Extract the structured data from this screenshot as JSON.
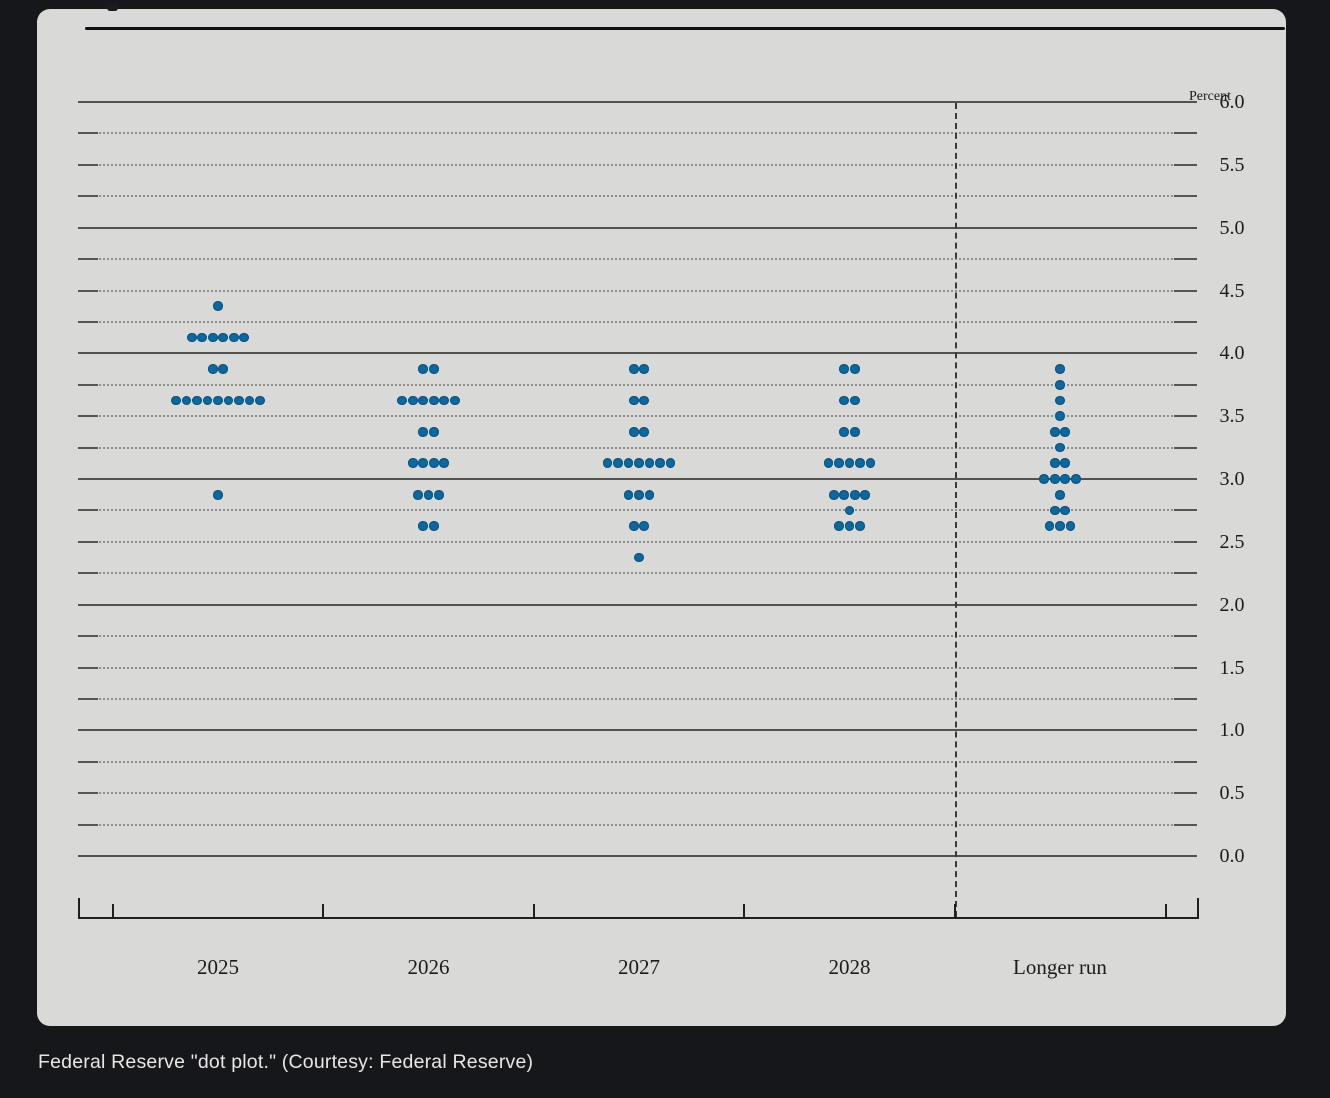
{
  "page": {
    "caption": "Federal Reserve \"dot plot.\" (Courtesy: Federal Reserve)"
  },
  "colors": {
    "page_background": "#15171b",
    "card_background": "#d9d9d8",
    "dot_blue": "#0e689d",
    "solid_gridline": "#3f3f3f",
    "dotted_gridline": "#8d8d8d",
    "axis": "#1f1f1f",
    "caption_text": "#e9e7e4"
  },
  "chart_data": {
    "type": "scatter",
    "subtype": "fomc-dot-plot",
    "percent_label": "Percent",
    "categories": [
      "2025",
      "2026",
      "2027",
      "2028",
      "Longer run"
    ],
    "separator_before_category": "Longer run",
    "ylim": [
      0.0,
      6.0
    ],
    "y_labeled_step": 0.5,
    "grid_step": 0.25,
    "y_tick_labels": [
      "6.0",
      "5.5",
      "5.0",
      "4.5",
      "4.0",
      "3.5",
      "3.0",
      "2.5",
      "2.0",
      "1.5",
      "1.0",
      "0.5",
      "0.0"
    ],
    "grid": "on",
    "dot_color": "#0e689d",
    "series": [
      {
        "name": "2025",
        "dots": [
          {
            "rate": 4.375,
            "count": 1
          },
          {
            "rate": 4.125,
            "count": 6
          },
          {
            "rate": 3.875,
            "count": 2
          },
          {
            "rate": 3.625,
            "count": 9
          },
          {
            "rate": 2.875,
            "count": 1
          }
        ]
      },
      {
        "name": "2026",
        "dots": [
          {
            "rate": 3.875,
            "count": 2
          },
          {
            "rate": 3.625,
            "count": 6
          },
          {
            "rate": 3.375,
            "count": 2
          },
          {
            "rate": 3.125,
            "count": 4
          },
          {
            "rate": 2.875,
            "count": 3
          },
          {
            "rate": 2.625,
            "count": 2
          }
        ]
      },
      {
        "name": "2027",
        "dots": [
          {
            "rate": 3.875,
            "count": 2
          },
          {
            "rate": 3.625,
            "count": 2
          },
          {
            "rate": 3.375,
            "count": 2
          },
          {
            "rate": 3.125,
            "count": 7
          },
          {
            "rate": 2.875,
            "count": 3
          },
          {
            "rate": 2.625,
            "count": 2
          },
          {
            "rate": 2.375,
            "count": 1
          }
        ]
      },
      {
        "name": "2028",
        "dots": [
          {
            "rate": 3.875,
            "count": 2
          },
          {
            "rate": 3.625,
            "count": 2
          },
          {
            "rate": 3.375,
            "count": 2
          },
          {
            "rate": 3.125,
            "count": 5
          },
          {
            "rate": 2.875,
            "count": 4
          },
          {
            "rate": 2.75,
            "count": 1
          },
          {
            "rate": 2.625,
            "count": 3
          }
        ]
      },
      {
        "name": "Longer run",
        "dots": [
          {
            "rate": 3.875,
            "count": 1
          },
          {
            "rate": 3.75,
            "count": 1
          },
          {
            "rate": 3.625,
            "count": 1
          },
          {
            "rate": 3.5,
            "count": 1
          },
          {
            "rate": 3.375,
            "count": 2
          },
          {
            "rate": 3.25,
            "count": 1
          },
          {
            "rate": 3.125,
            "count": 2
          },
          {
            "rate": 3.0,
            "count": 4
          },
          {
            "rate": 2.875,
            "count": 1
          },
          {
            "rate": 2.75,
            "count": 2
          },
          {
            "rate": 2.625,
            "count": 3
          }
        ]
      }
    ]
  }
}
